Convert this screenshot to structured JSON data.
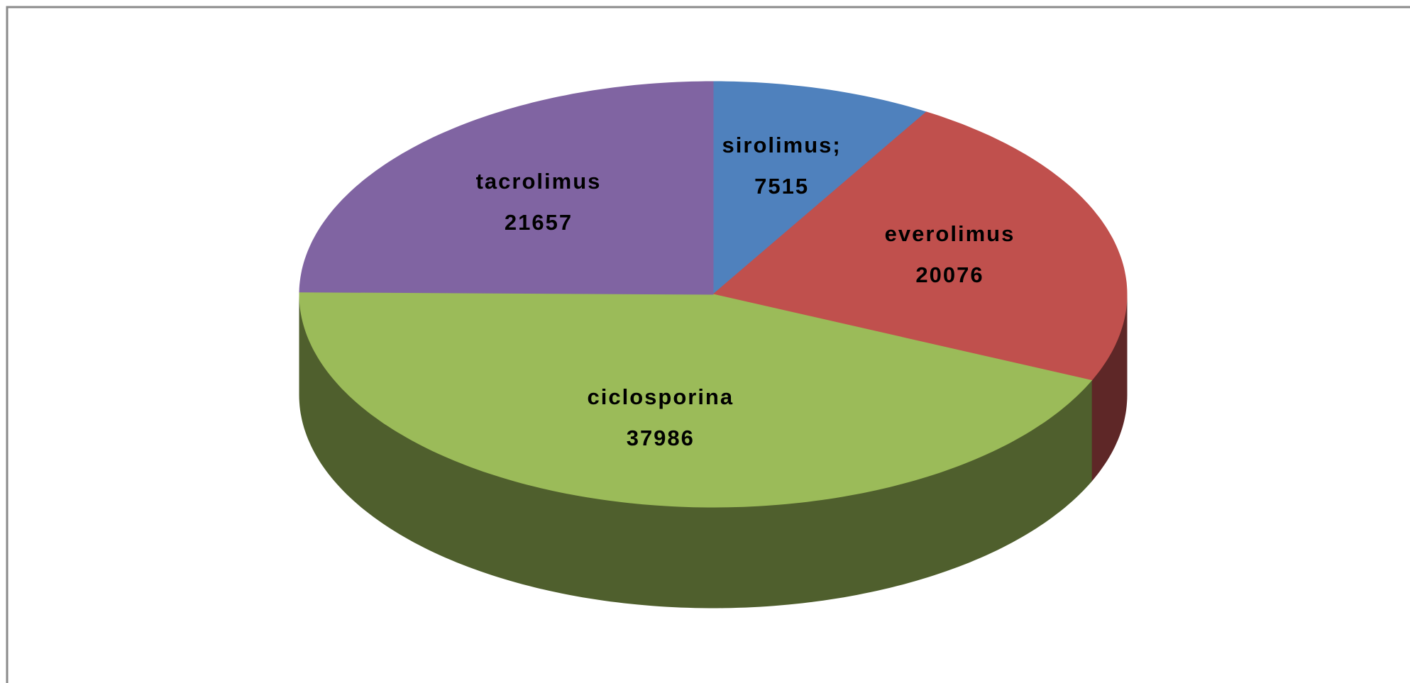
{
  "chart_data": {
    "type": "pie3d",
    "categories": [
      "sirolimus;",
      "everolimus",
      "ciclosporina",
      "tacrolimus"
    ],
    "values": [
      7515,
      20076,
      37986,
      21657
    ],
    "colors": [
      "#4f81bd",
      "#c0504d",
      "#9bbb59",
      "#8064a2"
    ],
    "side_colors": [
      "#2f4d71",
      "#5e2727",
      "#4f5f2d",
      "#4b3b60"
    ]
  }
}
